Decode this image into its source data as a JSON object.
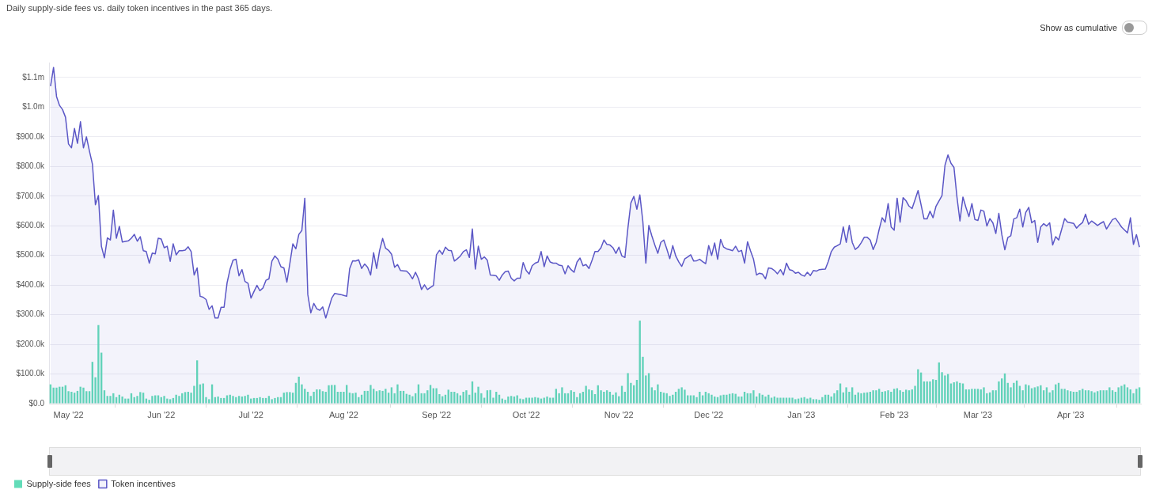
{
  "chart_data": {
    "type": "bar",
    "title": "Daily supply-side fees vs. daily token incentives in the past 365 days.",
    "annotations": [
      "Show as cumulative"
    ],
    "x": [
      "2022-04-25",
      "2022-04-26",
      "2022-04-27",
      "2022-04-28",
      "2022-04-29",
      "2022-04-30",
      "2022-05-01",
      "2022-05-02",
      "2022-05-03",
      "2022-05-04",
      "2022-05-05",
      "2022-05-06",
      "2022-05-07",
      "2022-05-08",
      "2022-05-09",
      "2022-05-10",
      "2022-05-11",
      "2022-05-12",
      "2022-05-13",
      "2022-05-14",
      "2022-05-15",
      "2022-05-16",
      "2022-05-17",
      "2022-05-18",
      "2022-05-19",
      "2022-05-20",
      "2022-05-21",
      "2022-05-22",
      "2022-05-23",
      "2022-05-24",
      "2022-05-25",
      "2022-05-26",
      "2022-05-27",
      "2022-05-28",
      "2022-05-29",
      "2022-05-30",
      "2022-05-31",
      "2022-06-01",
      "2022-06-02",
      "2022-06-03",
      "2022-06-04",
      "2022-06-05",
      "2022-06-06",
      "2022-06-07",
      "2022-06-08",
      "2022-06-09",
      "2022-06-10",
      "2022-06-11",
      "2022-06-12",
      "2022-06-13",
      "2022-06-14",
      "2022-06-15",
      "2022-06-16",
      "2022-06-17",
      "2022-06-18",
      "2022-06-19",
      "2022-06-20",
      "2022-06-21",
      "2022-06-22",
      "2022-06-23",
      "2022-06-24",
      "2022-06-25",
      "2022-06-26",
      "2022-06-27",
      "2022-06-28",
      "2022-06-29",
      "2022-06-30",
      "2022-07-01",
      "2022-07-02",
      "2022-07-03",
      "2022-07-04",
      "2022-07-05",
      "2022-07-06",
      "2022-07-07",
      "2022-07-08",
      "2022-07-09",
      "2022-07-10",
      "2022-07-11",
      "2022-07-12",
      "2022-07-13",
      "2022-07-14",
      "2022-07-15",
      "2022-07-16",
      "2022-07-17",
      "2022-07-18",
      "2022-07-19",
      "2022-07-20",
      "2022-07-21",
      "2022-07-22",
      "2022-07-23",
      "2022-07-24",
      "2022-07-25",
      "2022-07-26",
      "2022-07-27",
      "2022-07-28",
      "2022-07-29",
      "2022-07-30",
      "2022-07-31",
      "2022-08-01",
      "2022-08-02",
      "2022-08-03",
      "2022-08-04",
      "2022-08-05",
      "2022-08-06",
      "2022-08-07",
      "2022-08-08",
      "2022-08-09",
      "2022-08-10",
      "2022-08-11",
      "2022-08-12",
      "2022-08-13",
      "2022-08-14",
      "2022-08-15",
      "2022-08-16",
      "2022-08-17",
      "2022-08-18",
      "2022-08-19",
      "2022-08-20",
      "2022-08-21",
      "2022-08-22",
      "2022-08-23",
      "2022-08-24",
      "2022-08-25",
      "2022-08-26",
      "2022-08-27",
      "2022-08-28",
      "2022-08-29",
      "2022-08-30",
      "2022-08-31",
      "2022-09-01",
      "2022-09-02",
      "2022-09-03",
      "2022-09-04",
      "2022-09-05",
      "2022-09-06",
      "2022-09-07",
      "2022-09-08",
      "2022-09-09",
      "2022-09-10",
      "2022-09-11",
      "2022-09-12",
      "2022-09-13",
      "2022-09-14",
      "2022-09-15",
      "2022-09-16",
      "2022-09-17",
      "2022-09-18",
      "2022-09-19",
      "2022-09-20",
      "2022-09-21",
      "2022-09-22",
      "2022-09-23",
      "2022-09-24",
      "2022-09-25",
      "2022-09-26",
      "2022-09-27",
      "2022-09-28",
      "2022-09-29",
      "2022-09-30",
      "2022-10-01",
      "2022-10-02",
      "2022-10-03",
      "2022-10-04",
      "2022-10-05",
      "2022-10-06",
      "2022-10-07",
      "2022-10-08",
      "2022-10-09",
      "2022-10-10",
      "2022-10-11",
      "2022-10-12",
      "2022-10-13",
      "2022-10-14",
      "2022-10-15",
      "2022-10-16",
      "2022-10-17",
      "2022-10-18",
      "2022-10-19",
      "2022-10-20",
      "2022-10-21",
      "2022-10-22",
      "2022-10-23",
      "2022-10-24",
      "2022-10-25",
      "2022-10-26",
      "2022-10-27",
      "2022-10-28",
      "2022-10-29",
      "2022-10-30",
      "2022-10-31",
      "2022-11-01",
      "2022-11-02",
      "2022-11-03",
      "2022-11-04",
      "2022-11-05",
      "2022-11-06",
      "2022-11-07",
      "2022-11-08",
      "2022-11-09",
      "2022-11-10",
      "2022-11-11",
      "2022-11-12",
      "2022-11-13",
      "2022-11-14",
      "2022-11-15",
      "2022-11-16",
      "2022-11-17",
      "2022-11-18",
      "2022-11-19",
      "2022-11-20",
      "2022-11-21",
      "2022-11-22",
      "2022-11-23",
      "2022-11-24",
      "2022-11-25",
      "2022-11-26",
      "2022-11-27",
      "2022-11-28",
      "2022-11-29",
      "2022-11-30",
      "2022-12-01",
      "2022-12-02",
      "2022-12-03",
      "2022-12-04",
      "2022-12-05",
      "2022-12-06",
      "2022-12-07",
      "2022-12-08",
      "2022-12-09",
      "2022-12-10",
      "2022-12-11",
      "2022-12-12",
      "2022-12-13",
      "2022-12-14",
      "2022-12-15",
      "2022-12-16",
      "2022-12-17",
      "2022-12-18",
      "2022-12-19",
      "2022-12-20",
      "2022-12-21",
      "2022-12-22",
      "2022-12-23",
      "2022-12-24",
      "2022-12-25",
      "2022-12-26",
      "2022-12-27",
      "2022-12-28",
      "2022-12-29",
      "2022-12-30",
      "2022-12-31",
      "2023-01-01",
      "2023-01-02",
      "2023-01-03",
      "2023-01-04",
      "2023-01-05",
      "2023-01-06",
      "2023-01-07",
      "2023-01-08",
      "2023-01-09",
      "2023-01-10",
      "2023-01-11",
      "2023-01-12",
      "2023-01-13",
      "2023-01-14",
      "2023-01-15",
      "2023-01-16",
      "2023-01-17",
      "2023-01-18",
      "2023-01-19",
      "2023-01-20",
      "2023-01-21",
      "2023-01-22",
      "2023-01-23",
      "2023-01-24",
      "2023-01-25",
      "2023-01-26",
      "2023-01-27",
      "2023-01-28",
      "2023-01-29",
      "2023-01-30",
      "2023-01-31",
      "2023-02-01",
      "2023-02-02",
      "2023-02-03",
      "2023-02-04",
      "2023-02-05",
      "2023-02-06",
      "2023-02-07",
      "2023-02-08",
      "2023-02-09",
      "2023-02-10",
      "2023-02-11",
      "2023-02-12",
      "2023-02-13",
      "2023-02-14",
      "2023-02-15",
      "2023-02-16",
      "2023-02-17",
      "2023-02-18",
      "2023-02-19",
      "2023-02-20",
      "2023-02-21",
      "2023-02-22",
      "2023-02-23",
      "2023-02-24",
      "2023-02-25",
      "2023-02-26",
      "2023-02-27",
      "2023-02-28",
      "2023-03-01",
      "2023-03-02",
      "2023-03-03",
      "2023-03-04",
      "2023-03-05",
      "2023-03-06",
      "2023-03-07",
      "2023-03-08",
      "2023-03-09",
      "2023-03-10",
      "2023-03-11",
      "2023-03-12",
      "2023-03-13",
      "2023-03-14",
      "2023-03-15",
      "2023-03-16",
      "2023-03-17",
      "2023-03-18",
      "2023-03-19",
      "2023-03-20",
      "2023-03-21",
      "2023-03-22",
      "2023-03-23",
      "2023-03-24",
      "2023-03-25",
      "2023-03-26",
      "2023-03-27",
      "2023-03-28",
      "2023-03-29",
      "2023-03-30",
      "2023-03-31",
      "2023-04-01",
      "2023-04-02",
      "2023-04-03",
      "2023-04-04",
      "2023-04-05",
      "2023-04-06",
      "2023-04-07",
      "2023-04-08",
      "2023-04-09",
      "2023-04-10",
      "2023-04-11",
      "2023-04-12",
      "2023-04-13",
      "2023-04-14",
      "2023-04-15",
      "2023-04-16",
      "2023-04-17",
      "2023-04-18",
      "2023-04-19",
      "2023-04-20",
      "2023-04-21",
      "2023-04-22",
      "2023-04-23",
      "2023-04-24"
    ],
    "series": [
      {
        "name": "Supply-side fees",
        "color": "#62dcb8",
        "values": [
          65000,
          54000,
          54000,
          57000,
          57000,
          62000,
          42000,
          40000,
          37000,
          43000,
          57000,
          54000,
          42000,
          42000,
          141000,
          89000,
          265000,
          172000,
          45000,
          26000,
          26000,
          35000,
          22000,
          30000,
          24000,
          17000,
          17000,
          35000,
          22000,
          26000,
          39000,
          37000,
          17000,
          13000,
          26000,
          28000,
          28000,
          22000,
          26000,
          17000,
          15000,
          19000,
          30000,
          26000,
          35000,
          39000,
          40000,
          37000,
          60000,
          146000,
          65000,
          68000,
          22000,
          15000,
          65000,
          22000,
          24000,
          19000,
          19000,
          28000,
          30000,
          26000,
          22000,
          26000,
          24000,
          26000,
          30000,
          17000,
          19000,
          19000,
          22000,
          19000,
          19000,
          26000,
          15000,
          19000,
          22000,
          22000,
          37000,
          39000,
          39000,
          37000,
          70000,
          91000,
          65000,
          50000,
          40000,
          26000,
          40000,
          48000,
          48000,
          42000,
          40000,
          62000,
          63000,
          63000,
          40000,
          40000,
          40000,
          63000,
          37000,
          35000,
          37000,
          22000,
          30000,
          43000,
          43000,
          63000,
          50000,
          42000,
          45000,
          43000,
          50000,
          37000,
          55000,
          35000,
          65000,
          43000,
          43000,
          33000,
          30000,
          25000,
          35000,
          65000,
          35000,
          35000,
          45000,
          63000,
          52000,
          52000,
          32000,
          25000,
          30000,
          47000,
          40000,
          40000,
          35000,
          28000,
          40000,
          45000,
          30000,
          75000,
          37000,
          57000,
          35000,
          20000,
          45000,
          46000,
          20000,
          40000,
          30000,
          17000,
          13000,
          24000,
          26000,
          24000,
          28000,
          17000,
          15000,
          20000,
          20000,
          20000,
          22000,
          20000,
          17000,
          20000,
          24000,
          20000,
          20000,
          50000,
          35000,
          55000,
          35000,
          35000,
          45000,
          40000,
          22000,
          35000,
          40000,
          60000,
          48000,
          45000,
          32000,
          62000,
          45000,
          40000,
          45000,
          40000,
          30000,
          38000,
          25000,
          60000,
          40000,
          103000,
          70000,
          62000,
          80000,
          280000,
          158000,
          95000,
          103000,
          55000,
          45000,
          65000,
          40000,
          37000,
          35000,
          26000,
          30000,
          40000,
          50000,
          55000,
          47000,
          28000,
          28000,
          28000,
          22000,
          40000,
          28000,
          40000,
          35000,
          30000,
          24000,
          22000,
          28000,
          30000,
          30000,
          33000,
          35000,
          33000,
          24000,
          24000,
          40000,
          35000,
          35000,
          45000,
          24000,
          35000,
          30000,
          24000,
          30000,
          20000,
          24000,
          20000,
          20000,
          20000,
          20000,
          20000,
          20000,
          15000,
          17000,
          20000,
          22000,
          17000,
          20000,
          15000,
          15000,
          13000,
          22000,
          30000,
          30000,
          24000,
          35000,
          45000,
          68000,
          38000,
          55000,
          40000,
          55000,
          30000,
          38000,
          35000,
          37000,
          38000,
          40000,
          45000,
          45000,
          50000,
          40000,
          42000,
          45000,
          40000,
          50000,
          52000,
          45000,
          40000,
          47000,
          45000,
          48000,
          60000,
          116000,
          105000,
          75000,
          75000,
          75000,
          82000,
          80000,
          139000,
          106000,
          95000,
          100000,
          68000,
          72000,
          75000,
          70000,
          68000,
          48000,
          48000,
          50000,
          50000,
          50000,
          48000,
          55000,
          35000,
          38000,
          45000,
          45000,
          75000,
          85000,
          102000,
          70000,
          55000,
          70000,
          78000,
          60000,
          45000,
          65000,
          62000,
          52000,
          55000,
          58000,
          62000,
          45000,
          55000,
          38000,
          45000,
          65000,
          70000,
          50000,
          50000,
          45000,
          42000,
          40000,
          40000,
          45000,
          50000,
          45000,
          45000,
          42000,
          38000,
          42000,
          45000,
          45000,
          45000,
          55000,
          45000,
          40000,
          55000,
          60000,
          65000,
          55000,
          48000,
          35000,
          50000,
          55000
        ]
      },
      {
        "name": "Token incentives",
        "type": "area",
        "color": "#5b57c6",
        "values": [
          1071000,
          1134000,
          1036000,
          1006000,
          992000,
          966000,
          876000,
          863000,
          928000,
          878000,
          951000,
          863000,
          900000,
          852000,
          808000,
          671000,
          702000,
          531000,
          492000,
          559000,
          552000,
          653000,
          558000,
          598000,
          545000,
          547000,
          549000,
          558000,
          571000,
          548000,
          563000,
          516000,
          513000,
          474000,
          508000,
          505000,
          558000,
          555000,
          526000,
          531000,
          480000,
          539000,
          502000,
          516000,
          516000,
          518000,
          529000,
          513000,
          434000,
          458000,
          362000,
          359000,
          351000,
          318000,
          330000,
          289000,
          289000,
          325000,
          325000,
          407000,
          453000,
          484000,
          487000,
          431000,
          452000,
          412000,
          406000,
          356000,
          378000,
          399000,
          381000,
          390000,
          416000,
          421000,
          481000,
          498000,
          487000,
          462000,
          458000,
          410000,
          473000,
          539000,
          522000,
          571000,
          584000,
          693000,
          368000,
          306000,
          338000,
          320000,
          315000,
          326000,
          289000,
          322000,
          356000,
          372000,
          370000,
          368000,
          365000,
          362000,
          456000,
          482000,
          481000,
          485000,
          456000,
          471000,
          460000,
          434000,
          509000,
          456000,
          517000,
          557000,
          524000,
          517000,
          504000,
          460000,
          469000,
          449000,
          448000,
          447000,
          437000,
          421000,
          443000,
          421000,
          385000,
          401000,
          385000,
          392000,
          399000,
          502000,
          517000,
          504000,
          528000,
          517000,
          516000,
          481000,
          489000,
          498000,
          513000,
          519000,
          493000,
          589000,
          454000,
          531000,
          487000,
          495000,
          484000,
          434000,
          433000,
          431000,
          416000,
          434000,
          445000,
          447000,
          423000,
          414000,
          423000,
          423000,
          476000,
          449000,
          437000,
          465000,
          474000,
          478000,
          513000,
          462000,
          498000,
          478000,
          474000,
          474000,
          467000,
          465000,
          438000,
          465000,
          452000,
          443000,
          478000,
          491000,
          465000,
          469000,
          456000,
          483000,
          513000,
          513000,
          526000,
          552000,
          537000,
          535000,
          526000,
          507000,
          528000,
          498000,
          493000,
          592000,
          677000,
          699000,
          656000,
          704000,
          614000,
          474000,
          601000,
          566000,
          535000,
          507000,
          544000,
          552000,
          522000,
          489000,
          533000,
          498000,
          478000,
          463000,
          488000,
          495000,
          502000,
          481000,
          482000,
          487000,
          479000,
          472000,
          533000,
          500000,
          542000,
          487000,
          554000,
          528000,
          522000,
          519000,
          516000,
          531000,
          513000,
          517000,
          474000,
          546000,
          515000,
          487000,
          434000,
          440000,
          437000,
          421000,
          458000,
          456000,
          449000,
          438000,
          452000,
          434000,
          474000,
          452000,
          449000,
          440000,
          443000,
          434000,
          430000,
          443000,
          432000,
          449000,
          447000,
          452000,
          453000,
          454000,
          480000,
          513000,
          528000,
          533000,
          539000,
          596000,
          544000,
          601000,
          544000,
          520000,
          528000,
          543000,
          561000,
          561000,
          552000,
          520000,
          544000,
          588000,
          627000,
          612000,
          675000,
          596000,
          585000,
          693000,
          612000,
          695000,
          684000,
          666000,
          658000,
          688000,
          719000,
          671000,
          623000,
          623000,
          649000,
          627000,
          666000,
          684000,
          702000,
          804000,
          839000,
          811000,
          797000,
          697000,
          616000,
          697000,
          662000,
          631000,
          675000,
          621000,
          618000,
          653000,
          649000,
          599000,
          624000,
          610000,
          574000,
          642000,
          570000,
          519000,
          560000,
          566000,
          623000,
          627000,
          656000,
          596000,
          645000,
          662000,
          610000,
          618000,
          544000,
          596000,
          607000,
          599000,
          610000,
          535000,
          563000,
          552000,
          588000,
          624000,
          612000,
          610000,
          608000,
          592000,
          603000,
          611000,
          639000,
          605000,
          616000,
          609000,
          601000,
          608000,
          614000,
          589000,
          605000,
          621000,
          625000,
          611000,
          596000,
          586000,
          576000,
          627000,
          537000,
          570000,
          528000
        ]
      }
    ],
    "xlim": [
      "2022-04-24T12:00",
      "2023-04-24T12:00"
    ],
    "xticks": [
      {
        "value": "2022-05-01",
        "label": "May '22"
      },
      {
        "value": "2022-06-01",
        "label": "Jun '22"
      },
      {
        "value": "2022-07-01",
        "label": "Jul '22"
      },
      {
        "value": "2022-08-01",
        "label": "Aug '22"
      },
      {
        "value": "2022-09-01",
        "label": "Sep '22"
      },
      {
        "value": "2022-10-01",
        "label": "Oct '22"
      },
      {
        "value": "2022-11-01",
        "label": "Nov '22"
      },
      {
        "value": "2022-12-01",
        "label": "Dec '22"
      },
      {
        "value": "2023-01-01",
        "label": "Jan '23"
      },
      {
        "value": "2023-02-01",
        "label": "Feb '23"
      },
      {
        "value": "2023-03-01",
        "label": "Mar '23"
      },
      {
        "value": "2023-04-01",
        "label": "Apr '23"
      }
    ],
    "ylim": [
      0,
      1150000
    ],
    "yticks": [
      {
        "value": 0,
        "label": "$0.0"
      },
      {
        "value": 100000,
        "label": "$100.0k"
      },
      {
        "value": 200000,
        "label": "$200.0k"
      },
      {
        "value": 300000,
        "label": "$300.0k"
      },
      {
        "value": 400000,
        "label": "$400.0k"
      },
      {
        "value": 500000,
        "label": "$500.0k"
      },
      {
        "value": 600000,
        "label": "$600.0k"
      },
      {
        "value": 700000,
        "label": "$700.0k"
      },
      {
        "value": 800000,
        "label": "$800.0k"
      },
      {
        "value": 900000,
        "label": "$900.0k"
      },
      {
        "value": 1000000,
        "label": "$1.0m"
      },
      {
        "value": 1100000,
        "label": "$1.1m"
      }
    ],
    "grid": "y",
    "legend": "bottom left",
    "marker": "none"
  }
}
